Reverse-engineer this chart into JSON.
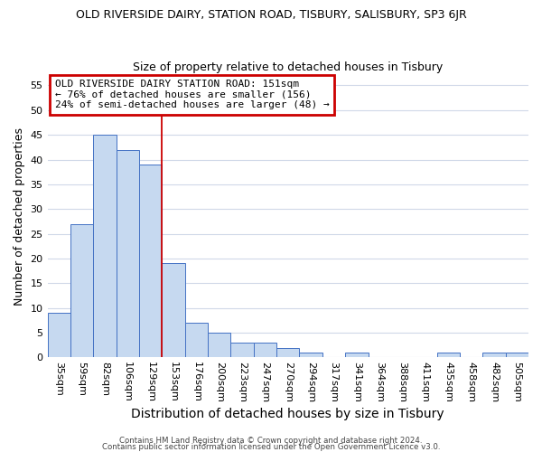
{
  "title": "OLD RIVERSIDE DAIRY, STATION ROAD, TISBURY, SALISBURY, SP3 6JR",
  "subtitle": "Size of property relative to detached houses in Tisbury",
  "xlabel": "Distribution of detached houses by size in Tisbury",
  "ylabel": "Number of detached properties",
  "bin_labels": [
    "35sqm",
    "59sqm",
    "82sqm",
    "106sqm",
    "129sqm",
    "153sqm",
    "176sqm",
    "200sqm",
    "223sqm",
    "247sqm",
    "270sqm",
    "294sqm",
    "317sqm",
    "341sqm",
    "364sqm",
    "388sqm",
    "411sqm",
    "435sqm",
    "458sqm",
    "482sqm",
    "505sqm"
  ],
  "bar_heights": [
    9,
    27,
    45,
    42,
    39,
    19,
    7,
    5,
    3,
    3,
    2,
    1,
    0,
    1,
    0,
    0,
    0,
    1,
    0,
    1,
    1
  ],
  "bar_color": "#c6d9f0",
  "bar_edge_color": "#4472c4",
  "vline_color": "#cc0000",
  "ylim": [
    0,
    57
  ],
  "yticks": [
    0,
    5,
    10,
    15,
    20,
    25,
    30,
    35,
    40,
    45,
    50,
    55
  ],
  "annotation_text": "OLD RIVERSIDE DAIRY STATION ROAD: 151sqm\n← 76% of detached houses are smaller (156)\n24% of semi-detached houses are larger (48) →",
  "annotation_box_color": "#ffffff",
  "annotation_box_edge": "#cc0000",
  "footer1": "Contains HM Land Registry data © Crown copyright and database right 2024.",
  "footer2": "Contains public sector information licensed under the Open Government Licence v3.0.",
  "background_color": "#ffffff",
  "grid_color": "#d0d8e8",
  "title_fontsize": 9,
  "subtitle_fontsize": 9,
  "xlabel_fontsize": 10,
  "ylabel_fontsize": 9,
  "tick_fontsize": 8,
  "annot_fontsize": 8
}
